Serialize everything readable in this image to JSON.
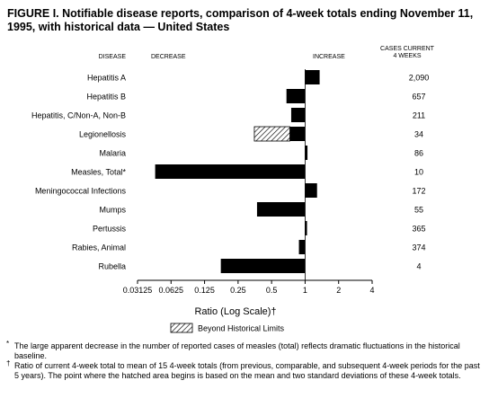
{
  "figure": {
    "title": "FIGURE I. Notifiable disease reports, comparison of 4-week totals ending November 11, 1995, with historical data — United States",
    "footnotes": [
      {
        "marker": "*",
        "text": "The large apparent decrease in the number of reported cases of measles (total) reflects dramatic fluctuations in the historical baseline."
      },
      {
        "marker": "†",
        "text": "Ratio of current 4-week total to mean of 15 4-week totals (from previous, comparable, and subsequent 4-week periods for the past 5 years). The point where the hatched area begins is based on the mean and two standard deviations of these 4-week totals."
      }
    ]
  },
  "chart_data": {
    "type": "bar",
    "orientation": "horizontal",
    "xscale": "log2",
    "xlim": [
      0.03125,
      4
    ],
    "ticks": [
      {
        "value": 0.03125,
        "label": "0.03125"
      },
      {
        "value": 0.0625,
        "label": "0.0625"
      },
      {
        "value": 0.125,
        "label": "0.125"
      },
      {
        "value": 0.25,
        "label": "0.25"
      },
      {
        "value": 0.5,
        "label": "0.5"
      },
      {
        "value": 1,
        "label": "1"
      },
      {
        "value": 2,
        "label": "2"
      },
      {
        "value": 4,
        "label": "4"
      }
    ],
    "xlabel": "Ratio (Log Scale)†",
    "headers": {
      "disease": "DISEASE",
      "decrease": "DECREASE",
      "increase": "INCREASE",
      "cases": "CASES CURRENT 4 WEEKS"
    },
    "legend": {
      "label": "Beyond Historical Limits"
    },
    "colors": {
      "bar": "#000000",
      "hatch": "#000000"
    },
    "rows": [
      {
        "disease": "Hepatitis A",
        "ratio": 1.35,
        "cases": "2,090"
      },
      {
        "disease": "Hepatitis B",
        "ratio": 0.68,
        "cases": "657"
      },
      {
        "disease": "Hepatitis, C/Non-A, Non-B",
        "ratio": 0.75,
        "cases": "211"
      },
      {
        "disease": "Legionellosis",
        "ratio": 0.35,
        "hatch_start": 0.73,
        "cases": "34"
      },
      {
        "disease": "Malaria",
        "ratio": 1.05,
        "cases": "86"
      },
      {
        "disease": "Measles, Total*",
        "ratio": 0.045,
        "cases": "10"
      },
      {
        "disease": "Meningococcal Infections",
        "ratio": 1.28,
        "cases": "172"
      },
      {
        "disease": "Mumps",
        "ratio": 0.37,
        "cases": "55"
      },
      {
        "disease": "Pertussis",
        "ratio": 1.04,
        "cases": "365"
      },
      {
        "disease": "Rabies, Animal",
        "ratio": 0.88,
        "cases": "374"
      },
      {
        "disease": "Rubella",
        "ratio": 0.175,
        "cases": "4"
      }
    ]
  }
}
